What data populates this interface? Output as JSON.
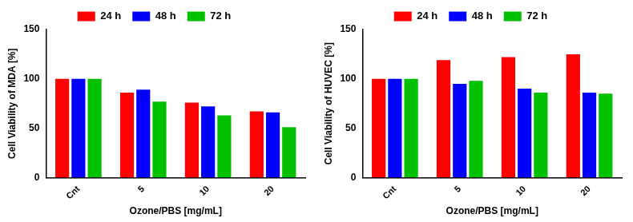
{
  "chart_data": [
    {
      "type": "bar",
      "x_label": "Ozone/PBS [mg/mL]",
      "y_label": "Cell Viability of MDA [%]",
      "categories": [
        "Cnt",
        "5",
        "10",
        "20"
      ],
      "series": [
        {
          "name": "24 h",
          "color": "#ff0000",
          "values": [
            100,
            86,
            76,
            67
          ]
        },
        {
          "name": "48 h",
          "color": "#0000ff",
          "values": [
            100,
            89,
            72,
            66
          ]
        },
        {
          "name": "72 h",
          "color": "#00c000",
          "values": [
            100,
            77,
            63,
            51
          ]
        }
      ],
      "ylim": [
        0,
        150
      ],
      "yticks": [
        0,
        50,
        100,
        150
      ],
      "grid": false,
      "legend": "top"
    },
    {
      "type": "bar",
      "x_label": "Ozone/PBS [mg/mL]",
      "y_label": "Cell Viability of HUVEC [%]",
      "categories": [
        "Cnt",
        "5",
        "10",
        "20"
      ],
      "series": [
        {
          "name": "24 h",
          "color": "#ff0000",
          "values": [
            100,
            119,
            122,
            125
          ]
        },
        {
          "name": "48 h",
          "color": "#0000ff",
          "values": [
            100,
            95,
            90,
            86
          ]
        },
        {
          "name": "72 h",
          "color": "#00c000",
          "values": [
            100,
            98,
            86,
            85
          ]
        }
      ],
      "ylim": [
        0,
        150
      ],
      "yticks": [
        0,
        50,
        100,
        150
      ],
      "grid": false,
      "legend": "top"
    }
  ]
}
